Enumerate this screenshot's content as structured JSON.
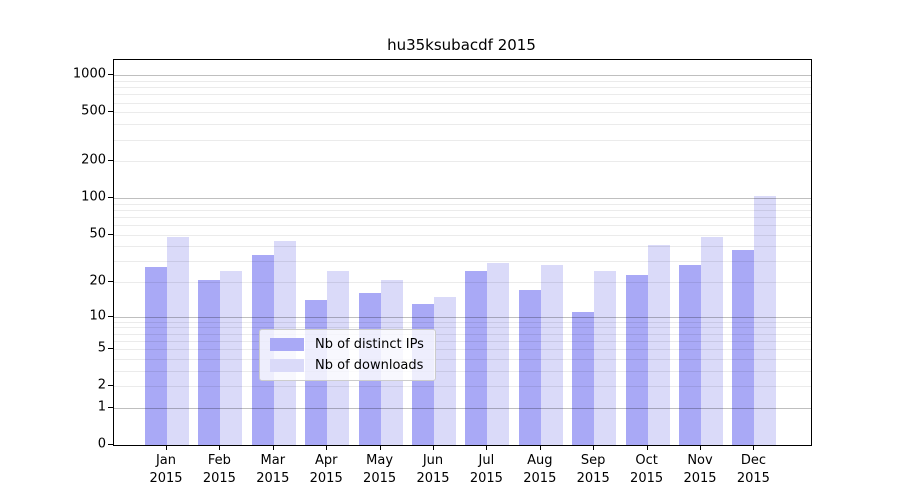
{
  "title": "hu35ksubacdf 2015",
  "chart_data": {
    "type": "bar",
    "title": "hu35ksubacdf 2015",
    "scale": "log10(1+y)",
    "categories": [
      "Jan",
      "Feb",
      "Mar",
      "Apr",
      "May",
      "Jun",
      "Jul",
      "Aug",
      "Sep",
      "Oct",
      "Nov",
      "Dec"
    ],
    "year": "2015",
    "series": [
      {
        "name": "Nb of distinct IPs",
        "color": "#a9a9f6",
        "values": [
          27,
          21,
          34,
          14,
          16,
          13,
          25,
          17,
          11,
          23,
          28,
          37
        ]
      },
      {
        "name": "Nb of downloads",
        "color": "#dadaf9",
        "values": [
          48,
          25,
          44,
          25,
          21,
          15,
          29,
          28,
          25,
          41,
          48,
          105
        ]
      }
    ],
    "yticks": [
      0,
      1,
      2,
      5,
      10,
      20,
      50,
      100,
      200,
      500,
      1000
    ],
    "major_gridlines": [
      1,
      10,
      100,
      1000
    ],
    "minor_gridline_steps": [
      2,
      3,
      4,
      5,
      6,
      7,
      8,
      9
    ],
    "ylim": [
      0,
      1750
    ],
    "grid": true,
    "legend_position": "bottom-center"
  },
  "legend": {
    "items": [
      "Nb of distinct IPs",
      "Nb of downloads"
    ]
  },
  "colors": {
    "bar_distinct_ips": "#a9a9f6",
    "bar_downloads": "#dadaf9",
    "major_grid": "#bfbfbf",
    "minor_grid": "#ebebeb",
    "axis": "#000000",
    "legend_border": "#cccccc"
  }
}
